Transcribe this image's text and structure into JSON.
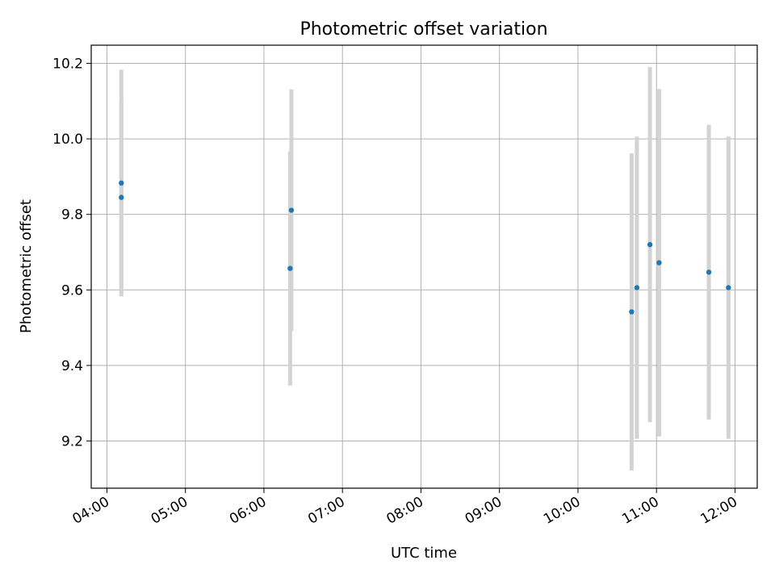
{
  "chart_data": {
    "type": "scatter",
    "title": "Photometric offset variation",
    "xlabel": "UTC time",
    "ylabel": "Photometric offset",
    "x_axis_type": "time",
    "xlim": [
      "03:48",
      "12:17"
    ],
    "ylim": [
      9.075,
      10.248
    ],
    "x_ticks": [
      "04:00",
      "05:00",
      "06:00",
      "07:00",
      "08:00",
      "09:00",
      "10:00",
      "11:00",
      "12:00"
    ],
    "y_ticks": [
      9.2,
      9.4,
      9.6,
      9.8,
      10.0,
      10.2
    ],
    "y_tick_labels": [
      "9.2",
      "9.4",
      "9.6",
      "9.8",
      "10.0",
      "10.2"
    ],
    "grid": true,
    "legend": "none",
    "marker_color": "#1f77b4",
    "errorbar_color": "#d3d3d3",
    "points": [
      {
        "x": "04:11",
        "y": 9.883,
        "yerr": 0.3
      },
      {
        "x": "04:11",
        "y": 9.845,
        "yerr": 0.26
      },
      {
        "x": "06:21",
        "y": 9.811,
        "yerr": 0.32
      },
      {
        "x": "06:20",
        "y": 9.657,
        "yerr": 0.31
      },
      {
        "x": "10:41",
        "y": 9.542,
        "yerr": 0.42
      },
      {
        "x": "10:45",
        "y": 9.606,
        "yerr": 0.4
      },
      {
        "x": "10:55",
        "y": 9.72,
        "yerr": 0.47
      },
      {
        "x": "11:02",
        "y": 9.672,
        "yerr": 0.46
      },
      {
        "x": "11:40",
        "y": 9.647,
        "yerr": 0.39
      },
      {
        "x": "11:55",
        "y": 9.606,
        "yerr": 0.4
      }
    ]
  }
}
